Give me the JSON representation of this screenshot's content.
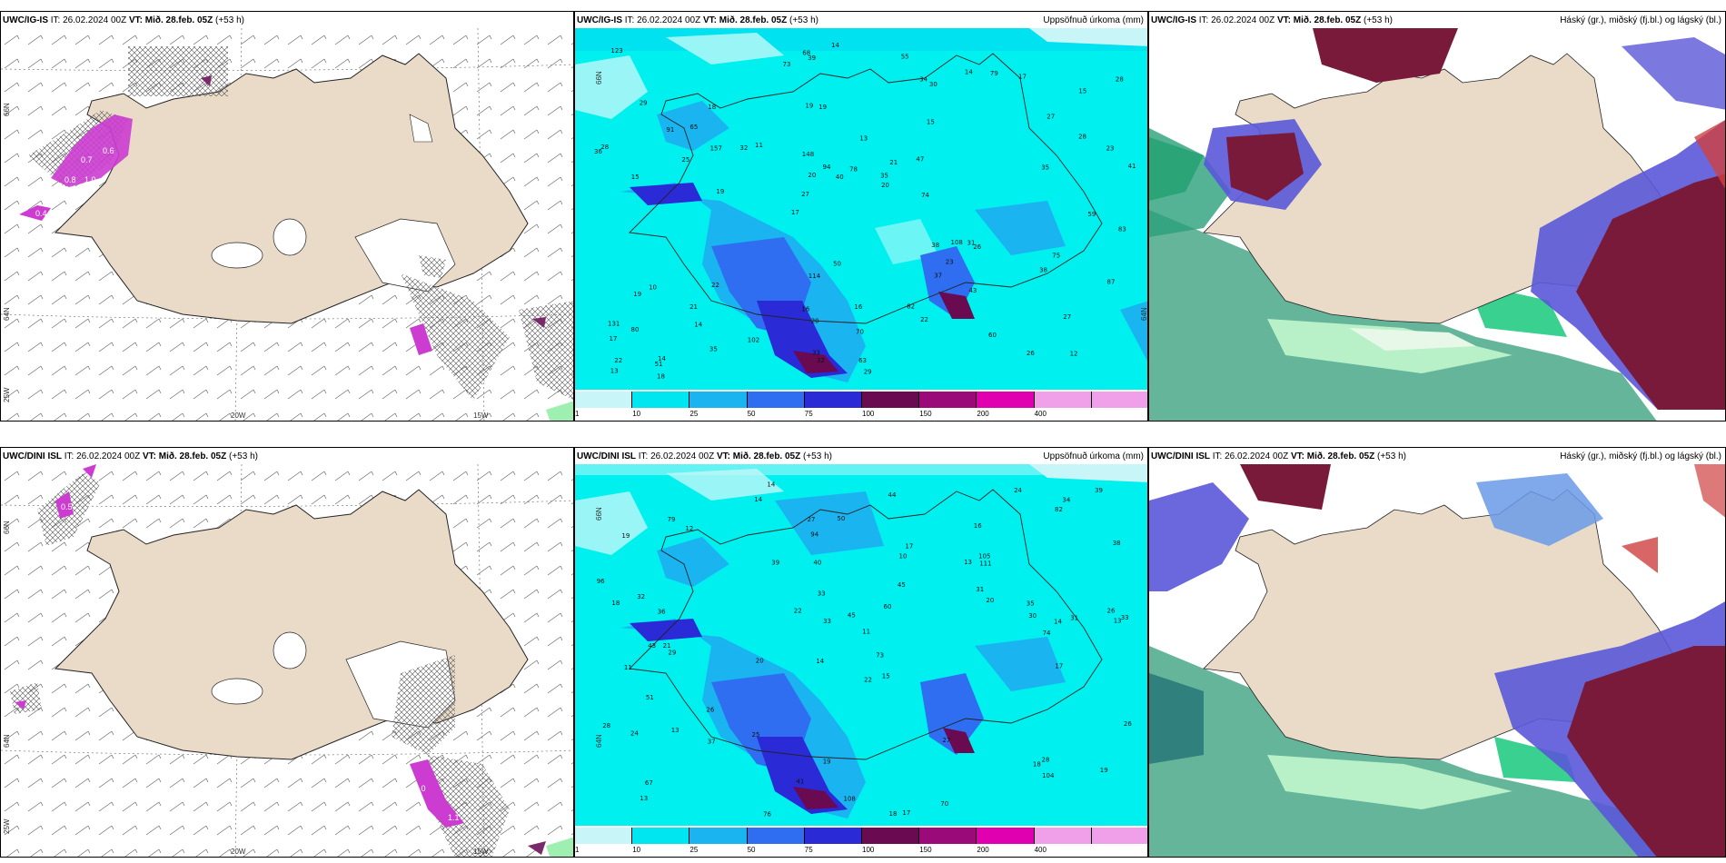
{
  "panels": [
    {
      "row": "top",
      "col": "wind",
      "model": "UWC/IG-IS",
      "it": "IT: 26.02.2024 00Z",
      "vt": "VT: Mið. 28.feb. 05Z",
      "lead": "(+53 h)",
      "product": "",
      "axis": {
        "lat1": "66N",
        "lat2": "64N",
        "lat3": "25W",
        "lon1": "20W",
        "lon2": "15W"
      },
      "values": [
        "0.7",
        "0.6",
        "0.8",
        "1.0",
        "0.4"
      ]
    },
    {
      "row": "top",
      "col": "precip",
      "model": "UWC/IG-IS",
      "it": "IT: 26.02.2024 00Z",
      "vt": "VT: Mið. 28.feb. 05Z",
      "lead": "(+53 h)",
      "product": "Uppsöfnuð úrkoma (mm)",
      "axis": {
        "lat1": "66N",
        "lat2": "64N"
      }
    },
    {
      "row": "top",
      "col": "cloud",
      "model": "UWC/IG-IS",
      "it": "IT: 26.02.2024 00Z",
      "vt": "VT: Mið. 28.feb. 05Z",
      "lead": "(+53 h)",
      "product": "Háský (gr.), miðský (fj.bl.) og lágský (bl.)"
    },
    {
      "row": "bottom",
      "col": "wind",
      "model": "UWC/DINI ISL",
      "it": "IT: 26.02.2024 00Z",
      "vt": "VT: Mið. 28.feb. 05Z",
      "lead": "(+53 h)",
      "product": "",
      "axis": {
        "lat1": "66N",
        "lat2": "64N",
        "lat3": "25W",
        "lon1": "20W",
        "lon2": "15W"
      },
      "values": [
        "0.5",
        "2.0",
        "1.1"
      ]
    },
    {
      "row": "bottom",
      "col": "precip",
      "model": "UWC/DINI ISL",
      "it": "IT: 26.02.2024 00Z",
      "vt": "VT: Mið. 28.feb. 05Z",
      "lead": "(+53 h)",
      "product": "Uppsöfnuð úrkoma (mm)",
      "axis": {
        "lat1": "66N",
        "lat2": "64N"
      }
    },
    {
      "row": "bottom",
      "col": "cloud",
      "model": "UWC/DINI ISL",
      "it": "IT: 26.02.2024 00Z",
      "vt": "VT: Mið. 28.feb. 05Z",
      "lead": "(+53 h)",
      "product": "Háský (gr.), miðský (fj.bl.) og lágský (bl.)"
    }
  ],
  "colorbar": {
    "labels": [
      "1",
      "10",
      "25",
      "50",
      "75",
      "100",
      "150",
      "200",
      "400"
    ],
    "colors": [
      "#c8f6f8",
      "#00e6f0",
      "#1ab4f0",
      "#2f6ef0",
      "#2a2ad6",
      "#6a0a50",
      "#9a0a78",
      "#e000b0",
      "#f0a0e8"
    ]
  },
  "top_precip_numbers": [
    "12",
    "15",
    "15",
    "17",
    "15",
    "14",
    "19",
    "13",
    "10",
    "11",
    "17",
    "14",
    "19",
    "21",
    "26",
    "29",
    "39",
    "41",
    "38",
    "28",
    "27",
    "16",
    "20",
    "18",
    "14",
    "22",
    "26",
    "27",
    "31",
    "29",
    "32",
    "25",
    "37",
    "35",
    "23",
    "35",
    "22",
    "20",
    "20",
    "19",
    "27",
    "28",
    "23",
    "22",
    "21",
    "18",
    "13",
    "16",
    "17",
    "14",
    "19",
    "28",
    "65",
    "79",
    "51",
    "55",
    "73",
    "94",
    "87",
    "114",
    "102",
    "108",
    "157",
    "131",
    "123",
    "91",
    "83",
    "148",
    "70",
    "78",
    "80",
    "74",
    "75",
    "33",
    "35",
    "50",
    "60",
    "63",
    "82",
    "68",
    "59",
    "47",
    "43",
    "40",
    "38",
    "36",
    "32",
    "34",
    "30"
  ],
  "bottom_precip_numbers": [
    "14",
    "16",
    "13",
    "14",
    "15",
    "21",
    "19",
    "13",
    "11",
    "10",
    "11",
    "13",
    "14",
    "20",
    "18",
    "17",
    "19",
    "24",
    "20",
    "26",
    "36",
    "43",
    "33",
    "31",
    "28",
    "32",
    "33",
    "30",
    "28",
    "24",
    "18",
    "17",
    "13",
    "22",
    "27",
    "26",
    "35",
    "41",
    "39",
    "50",
    "67",
    "76",
    "70",
    "79",
    "108",
    "111",
    "104",
    "105",
    "96",
    "73",
    "94",
    "74",
    "60",
    "82",
    "44",
    "37",
    "33",
    "45",
    "34",
    "40",
    "19",
    "17",
    "12",
    "25",
    "22",
    "18",
    "14",
    "29",
    "39",
    "38",
    "51",
    "27",
    "26",
    "31",
    "45"
  ]
}
